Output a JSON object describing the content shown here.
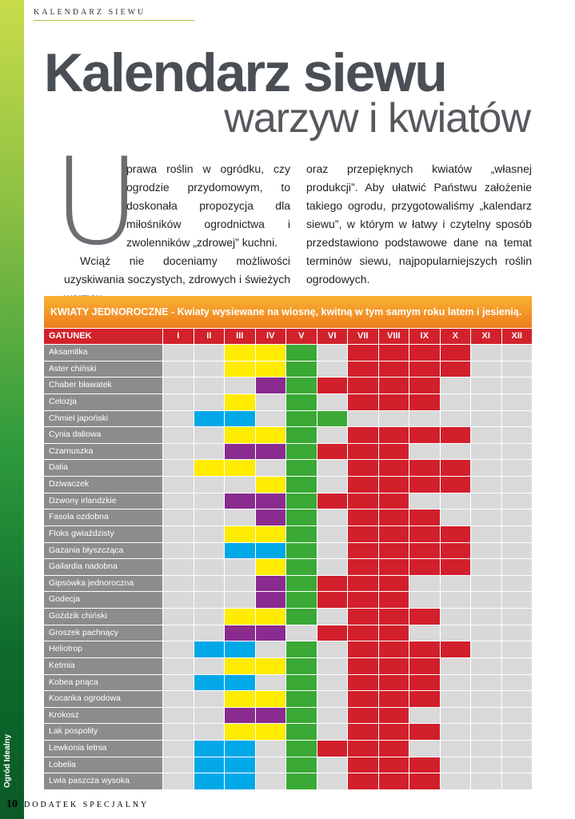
{
  "header": {
    "section": "KALENDARZ SIEWU",
    "title": "Kalendarz siewu",
    "subtitle": "warzyw i kwiatów"
  },
  "intro": {
    "drop_cap": "U",
    "paragraphs": [
      "prawa roślin w ogródku, czy ogrodzie przydomowym, to doskonała propozycja dla miłośników ogrodnictwa i zwolenników „zdrowej” kuchni.",
      "Wciąż nie doceniamy możliwości uzyskiwania soczystych, zdrowych i świeżych warzyw",
      "oraz przepięknych kwiatów „własnej produkcji”. Aby ułatwić Państwu założenie takiego ogrodu, przygotowaliśmy „kalendarz siewu”, w którym w łatwy i czytelny sposób przedstawiono podstawowe dane na temat terminów siewu, najpopularniejszych roślin ogrodowych."
    ]
  },
  "table": {
    "caption": "KWIATY JEDNOROCZNE",
    "caption_note": " - Kwiaty wysiewane na wiosnę, kwitną w tym samym roku latem i jesienią.",
    "columns": [
      "GATUNEK",
      "I",
      "II",
      "III",
      "IV",
      "V",
      "VI",
      "VII",
      "VIII",
      "IX",
      "X",
      "XI",
      "XII"
    ],
    "palette": {
      "-": "#d9d9da",
      "y": "#ffec00",
      "p": "#8a2b90",
      "b": "#00a8e8",
      "g": "#3aa935",
      "r": "#d21f2c"
    },
    "rows": [
      {
        "name": "Aksamitka",
        "cells": "--yyg-rrrr--"
      },
      {
        "name": "Aster chiński",
        "cells": "--yyg-rrrr--"
      },
      {
        "name": "Chaber bławatek",
        "cells": "---pgrrrr---"
      },
      {
        "name": "Celozja",
        "cells": "--y-g-rrr---"
      },
      {
        "name": "Chmiel japoński",
        "cells": "-bb-gg------"
      },
      {
        "name": "Cynia daliowa",
        "cells": "--yyg-rrrr--"
      },
      {
        "name": "Czarnuszka",
        "cells": "--ppgrrr----"
      },
      {
        "name": "Dalia",
        "cells": "-yy-g-rrrr--"
      },
      {
        "name": "Dziwaczek",
        "cells": "---yg-rrrr--"
      },
      {
        "name": "Dzwony irlandzkie",
        "cells": "--ppgrrr----"
      },
      {
        "name": "Fasola ozdobna",
        "cells": "---pg-rrr---"
      },
      {
        "name": "Floks gwiaździsty",
        "cells": "--yyg-rrrr--"
      },
      {
        "name": "Gazania błyszcząca",
        "cells": "--bbg-rrrr--"
      },
      {
        "name": "Gailardia nadobna",
        "cells": "---yg-rrrr--"
      },
      {
        "name": "Gipsówka jednoroczna",
        "cells": "---pgrrr----"
      },
      {
        "name": "Godecja",
        "cells": "---pgrrr----"
      },
      {
        "name": "Goździk chiński",
        "cells": "--yyg-rrr---"
      },
      {
        "name": "Groszek pachnący",
        "cells": "--pp-rrr----"
      },
      {
        "name": "Heliotrop",
        "cells": "-bb-g-rrrr--"
      },
      {
        "name": "Ketmia",
        "cells": "--yyg-rrr---"
      },
      {
        "name": "Kobea pnąca",
        "cells": "-bb-g-rrr---"
      },
      {
        "name": "Kocanka ogrodowa",
        "cells": "--yyg-rrr---"
      },
      {
        "name": "Krokosz",
        "cells": "--ppg-rr----"
      },
      {
        "name": "Lak pospolity",
        "cells": "--yyg-rrr---"
      },
      {
        "name": "Lewkonia letnia",
        "cells": "-bb-grrr----"
      },
      {
        "name": "Lobelia",
        "cells": "-bb-g-rrr---"
      },
      {
        "name": "Lwia paszcza wysoka",
        "cells": "-bb-g-rrr---"
      }
    ]
  },
  "footer": {
    "page": "10",
    "label": "DODATEK SPECJALNY",
    "side": "Ogród Idealny"
  }
}
